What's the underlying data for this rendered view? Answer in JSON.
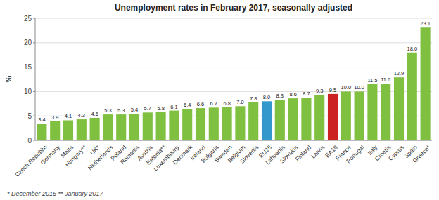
{
  "chart_data": {
    "type": "bar",
    "title": "Unemployment rates in February 2017, seasonally adjusted",
    "ylabel": "%",
    "annotations": [
      "* December 2016    ** January 2017"
    ],
    "categories": [
      "Czech Republic",
      "Germany",
      "Malta",
      "Hungary**",
      "UK*",
      "Netherlands",
      "Poland",
      "Romania",
      "Austria",
      "Estonia**",
      "Luxembourg",
      "Denmark",
      "Ireland",
      "Bulgaria",
      "Sweden",
      "Belgium",
      "Slovenia",
      "EU28",
      "Lithuania",
      "Slovakia",
      "Finland",
      "Latvia",
      "EA19",
      "France",
      "Portugal",
      "Italy",
      "Croatia",
      "Cyprus",
      "Spain",
      "Greece*"
    ],
    "values": [
      3.4,
      3.9,
      4.1,
      4.3,
      4.6,
      5.3,
      5.3,
      5.4,
      5.7,
      5.8,
      6.1,
      6.4,
      6.6,
      6.7,
      6.8,
      7.0,
      7.8,
      8.0,
      8.3,
      8.6,
      8.7,
      9.3,
      9.5,
      10.0,
      10.0,
      11.5,
      11.6,
      12.9,
      18.0,
      23.1
    ],
    "value_labels": [
      "3.4",
      "3.9",
      "4.1",
      "4.3",
      "4.6",
      "5.3",
      "5.3",
      "5.4",
      "5.7",
      "5.8",
      "6.1",
      "6.4",
      "6.6",
      "6.7",
      "6.8",
      "7.0",
      "7.8",
      "8.0",
      "8.3",
      "8.6",
      "8.7",
      "9.3",
      "9.5",
      "10.0",
      "10.0",
      "11.5",
      "11.6",
      "12.9",
      "18.0",
      "23.1"
    ],
    "colors": [
      "#80c040",
      "#80c040",
      "#80c040",
      "#80c040",
      "#80c040",
      "#80c040",
      "#80c040",
      "#80c040",
      "#80c040",
      "#80c040",
      "#80c040",
      "#80c040",
      "#80c040",
      "#80c040",
      "#80c040",
      "#80c040",
      "#80c040",
      "#3399cc",
      "#80c040",
      "#80c040",
      "#80c040",
      "#80c040",
      "#cc2222",
      "#80c040",
      "#80c040",
      "#80c040",
      "#80c040",
      "#80c040",
      "#80c040",
      "#80c040"
    ],
    "ylim": [
      0,
      25
    ],
    "yticks": [
      0,
      5,
      10,
      15,
      20,
      25
    ],
    "grid": true,
    "data_labels": true
  }
}
